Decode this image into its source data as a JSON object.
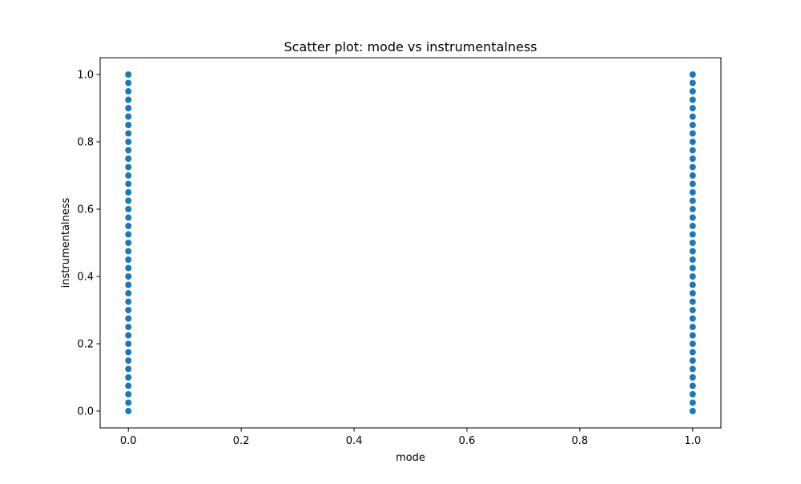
{
  "chart_data": {
    "type": "scatter",
    "title": "Scatter plot: mode vs instrumentalness",
    "xlabel": "mode",
    "ylabel": "instrumentalness",
    "xlim": [
      -0.05,
      1.05
    ],
    "ylim": [
      -0.05,
      1.05
    ],
    "xticks": [
      0.0,
      0.2,
      0.4,
      0.6,
      0.8,
      1.0
    ],
    "yticks": [
      0.0,
      0.2,
      0.4,
      0.6,
      0.8,
      1.0
    ],
    "xtick_labels": [
      "0.0",
      "0.2",
      "0.4",
      "0.6",
      "0.8",
      "1.0"
    ],
    "ytick_labels": [
      "0.0",
      "0.2",
      "0.4",
      "0.6",
      "0.8",
      "1.0"
    ],
    "grid": false,
    "point_color": "#1f77b4",
    "series": [
      {
        "x": [
          0,
          0,
          0,
          0,
          0,
          0,
          0,
          0,
          0,
          0,
          0,
          0,
          0,
          0,
          0,
          0,
          0,
          0,
          0,
          0,
          0,
          0,
          0,
          0,
          0,
          0,
          0,
          0,
          0,
          0,
          0,
          0,
          0,
          0,
          0,
          0,
          0,
          0,
          0,
          0,
          0,
          1,
          1,
          1,
          1,
          1,
          1,
          1,
          1,
          1,
          1,
          1,
          1,
          1,
          1,
          1,
          1,
          1,
          1,
          1,
          1,
          1,
          1,
          1,
          1,
          1,
          1,
          1,
          1,
          1,
          1,
          1,
          1,
          1,
          1,
          1,
          1,
          1,
          1,
          1,
          1,
          1
        ],
        "y": [
          0.0,
          0.025,
          0.05,
          0.075,
          0.1,
          0.125,
          0.15,
          0.175,
          0.2,
          0.225,
          0.25,
          0.275,
          0.3,
          0.325,
          0.35,
          0.375,
          0.4,
          0.425,
          0.45,
          0.475,
          0.5,
          0.525,
          0.55,
          0.575,
          0.6,
          0.625,
          0.65,
          0.675,
          0.7,
          0.725,
          0.75,
          0.775,
          0.8,
          0.825,
          0.85,
          0.875,
          0.9,
          0.925,
          0.95,
          0.975,
          1.0,
          0.0,
          0.025,
          0.05,
          0.075,
          0.1,
          0.125,
          0.15,
          0.175,
          0.2,
          0.225,
          0.25,
          0.275,
          0.3,
          0.325,
          0.35,
          0.375,
          0.4,
          0.425,
          0.45,
          0.475,
          0.5,
          0.525,
          0.55,
          0.575,
          0.6,
          0.625,
          0.65,
          0.675,
          0.7,
          0.725,
          0.75,
          0.775,
          0.8,
          0.825,
          0.85,
          0.875,
          0.9,
          0.925,
          0.95,
          0.975,
          1.0
        ]
      }
    ]
  }
}
